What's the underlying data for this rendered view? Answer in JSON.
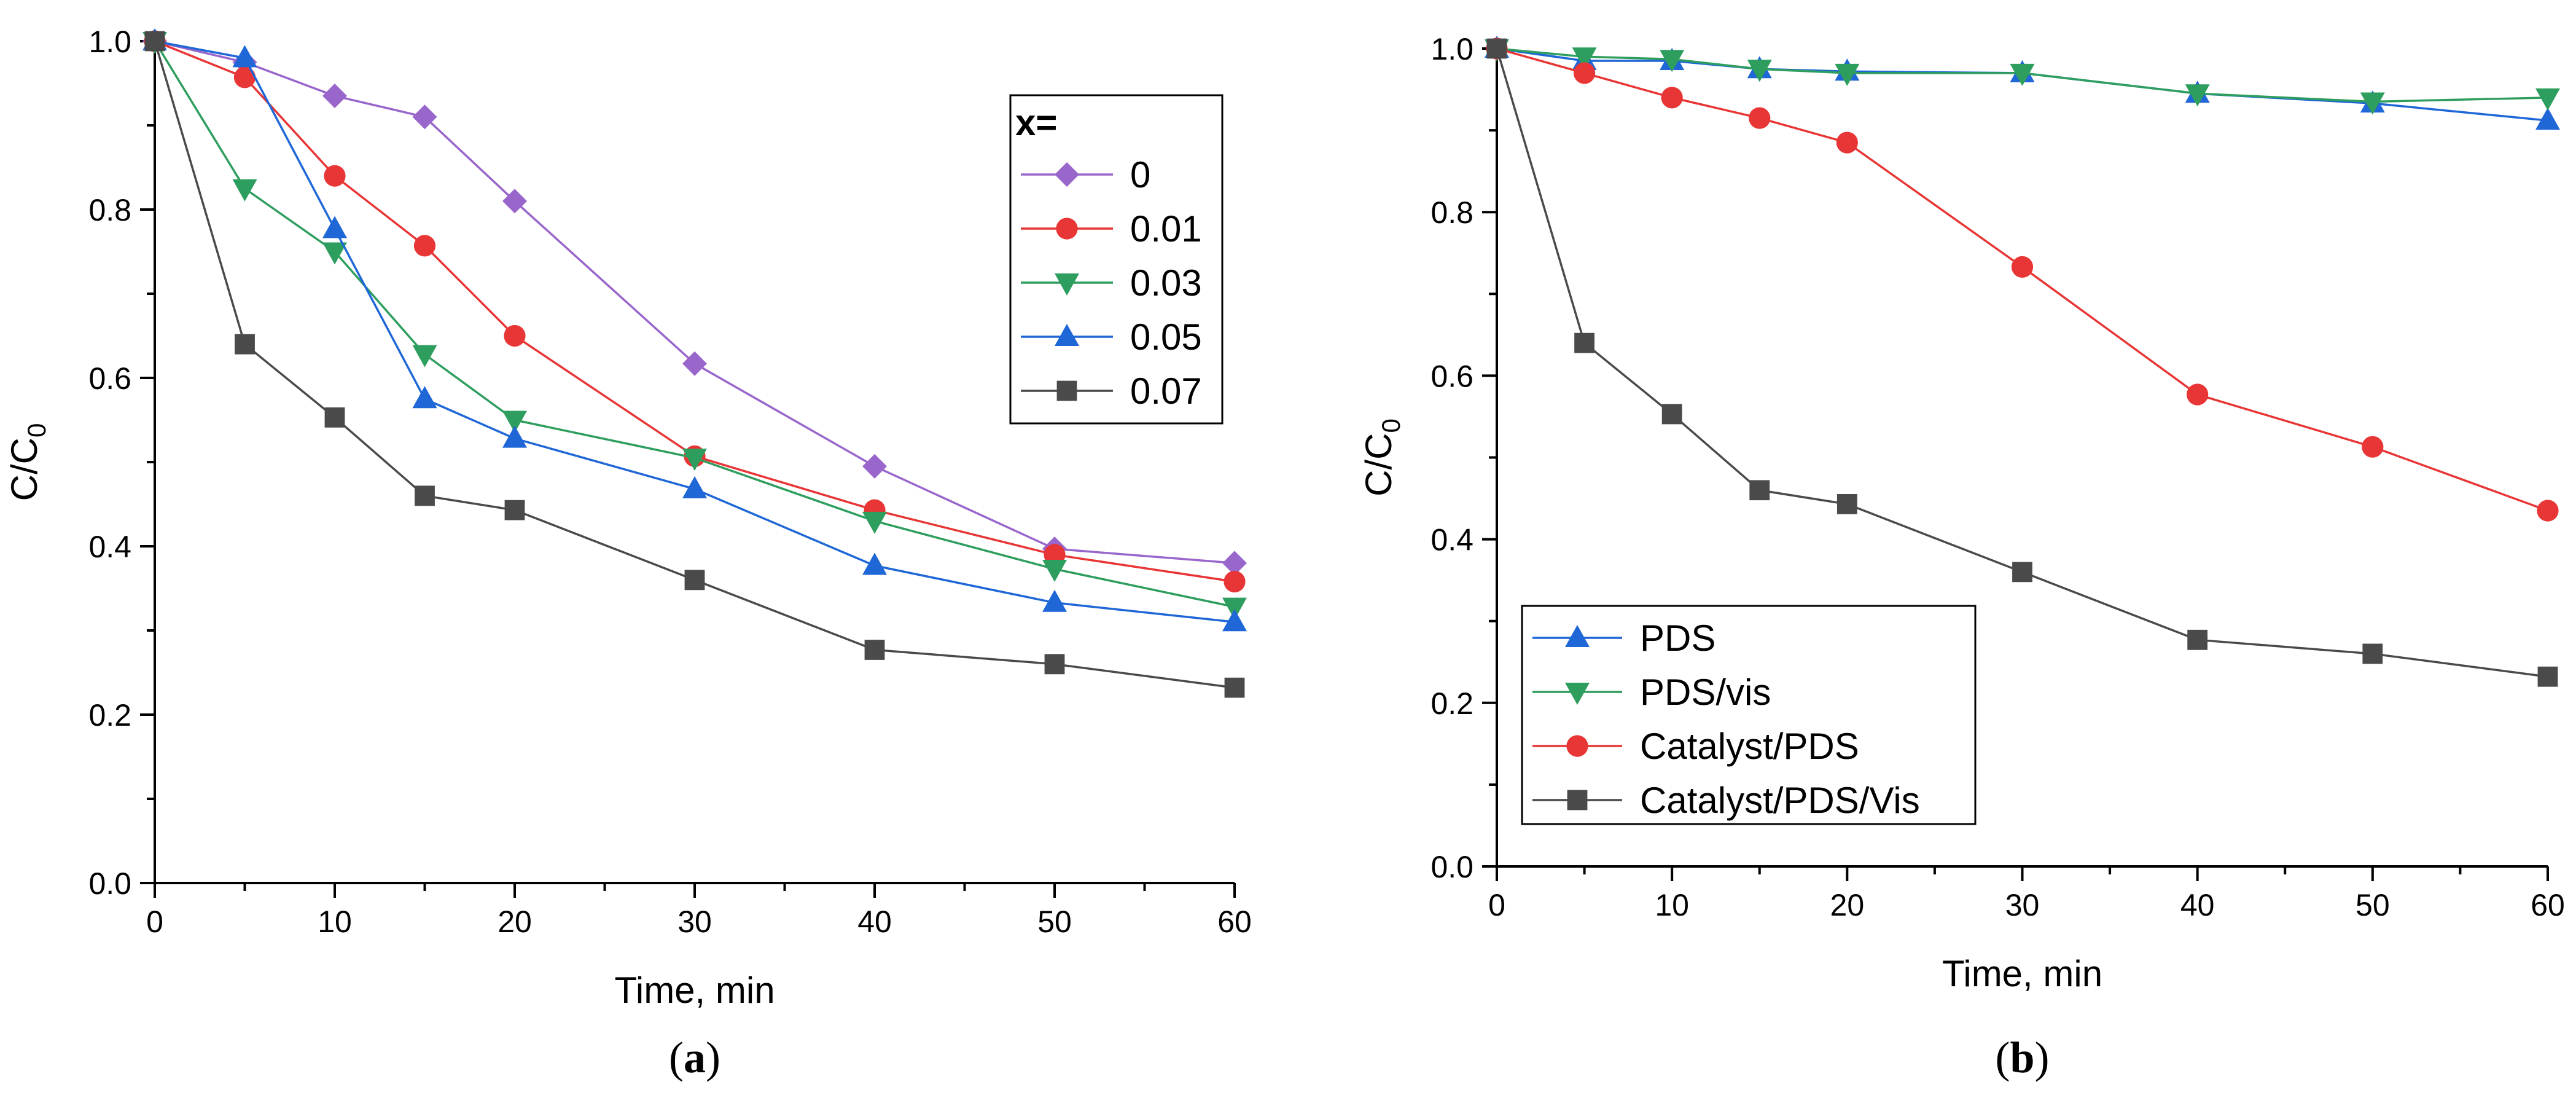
{
  "chart_data": [
    {
      "type": "line",
      "panel_label": "a",
      "xlabel": "Time, min",
      "ylabel": "C/C",
      "ylabel_subscript": "0",
      "xlim": [
        0,
        60
      ],
      "ylim": [
        0,
        1.0
      ],
      "xticks": [
        "0",
        "10",
        "20",
        "30",
        "40",
        "50",
        "60"
      ],
      "yticks": [
        "0.0",
        "0.2",
        "0.4",
        "0.6",
        "0.8",
        "1.0"
      ],
      "legend_title": "x=",
      "legend_position": "top-right",
      "x": [
        0,
        5,
        10,
        15,
        20,
        30,
        40,
        50,
        60
      ],
      "series": [
        {
          "name": "0",
          "marker": "diamond",
          "color": "#9966cc",
          "values": [
            1.0,
            0.975,
            0.935,
            0.91,
            0.81,
            0.617,
            0.495,
            0.397,
            0.38
          ]
        },
        {
          "name": "0.01",
          "marker": "circle",
          "color": "#e83535",
          "values": [
            1.0,
            0.957,
            0.84,
            0.757,
            0.65,
            0.507,
            0.443,
            0.39,
            0.358
          ]
        },
        {
          "name": "0.03",
          "marker": "triangle-down",
          "color": "#2e9e5e",
          "values": [
            1.0,
            0.825,
            0.75,
            0.628,
            0.55,
            0.505,
            0.43,
            0.373,
            0.328
          ]
        },
        {
          "name": "0.05",
          "marker": "triangle-up",
          "color": "#1f67d6",
          "values": [
            1.0,
            0.98,
            0.777,
            0.575,
            0.528,
            0.468,
            0.377,
            0.333,
            0.31
          ]
        },
        {
          "name": "0.07",
          "marker": "square",
          "color": "#4a4a4a",
          "values": [
            1.0,
            0.64,
            0.553,
            0.46,
            0.443,
            0.36,
            0.277,
            0.26,
            0.232
          ]
        }
      ]
    },
    {
      "type": "line",
      "panel_label": "b",
      "xlabel": "Time, min",
      "ylabel": "C/C",
      "ylabel_subscript": "0",
      "xlim": [
        0,
        60
      ],
      "ylim": [
        0,
        1.0
      ],
      "xticks": [
        "0",
        "10",
        "20",
        "30",
        "40",
        "50",
        "60"
      ],
      "yticks": [
        "0.0",
        "0.2",
        "0.4",
        "0.6",
        "0.8",
        "1.0"
      ],
      "legend_title": "",
      "legend_position": "bottom-left",
      "x": [
        0,
        5,
        10,
        15,
        20,
        30,
        40,
        50,
        60
      ],
      "series": [
        {
          "name": "PDS",
          "marker": "triangle-up",
          "color": "#1f67d6",
          "values": [
            1.0,
            0.985,
            0.985,
            0.975,
            0.972,
            0.97,
            0.945,
            0.933,
            0.912
          ]
        },
        {
          "name": "PDS/vis",
          "marker": "triangle-down",
          "color": "#2e9e5e",
          "values": [
            1.0,
            0.99,
            0.987,
            0.975,
            0.97,
            0.97,
            0.945,
            0.935,
            0.94
          ]
        },
        {
          "name": "Catalyst/PDS",
          "marker": "circle",
          "color": "#e83535",
          "values": [
            1.0,
            0.97,
            0.94,
            0.915,
            0.885,
            0.733,
            0.577,
            0.513,
            0.435
          ]
        },
        {
          "name": "Catalyst/PDS/Vis",
          "marker": "square",
          "color": "#4a4a4a",
          "values": [
            1.0,
            0.64,
            0.553,
            0.46,
            0.443,
            0.36,
            0.277,
            0.26,
            0.232
          ]
        }
      ]
    }
  ]
}
